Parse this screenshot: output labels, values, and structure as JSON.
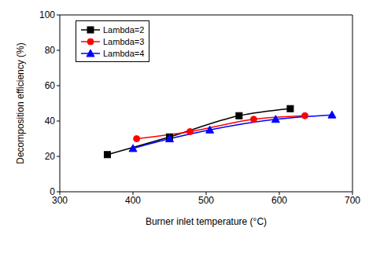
{
  "chart_data": {
    "type": "line",
    "x_label": "Burner inlet temperature (°C)",
    "y_label": "Decomposition efficiency (%)",
    "xlim": [
      300,
      700
    ],
    "xticks": [
      300,
      400,
      500,
      600,
      700
    ],
    "ylim": [
      0,
      100
    ],
    "yticks": [
      0,
      20,
      40,
      60,
      80,
      100
    ],
    "grid": false,
    "legend": "top-left",
    "series": [
      {
        "name": "Lambda=2",
        "color": "#000000",
        "marker": "square",
        "x": [
          365,
          450,
          545,
          615
        ],
        "values": [
          21,
          31,
          43,
          47
        ]
      },
      {
        "name": "Lambda=3",
        "color": "#ff0000",
        "marker": "circle",
        "x": [
          405,
          478,
          565,
          635
        ],
        "values": [
          30,
          34,
          41,
          43
        ]
      },
      {
        "name": "Lambda=4",
        "color": "#0000ff",
        "marker": "triangle",
        "x": [
          400,
          450,
          505,
          595,
          672
        ],
        "values": [
          24.5,
          30,
          35,
          41,
          43.5
        ]
      }
    ]
  }
}
